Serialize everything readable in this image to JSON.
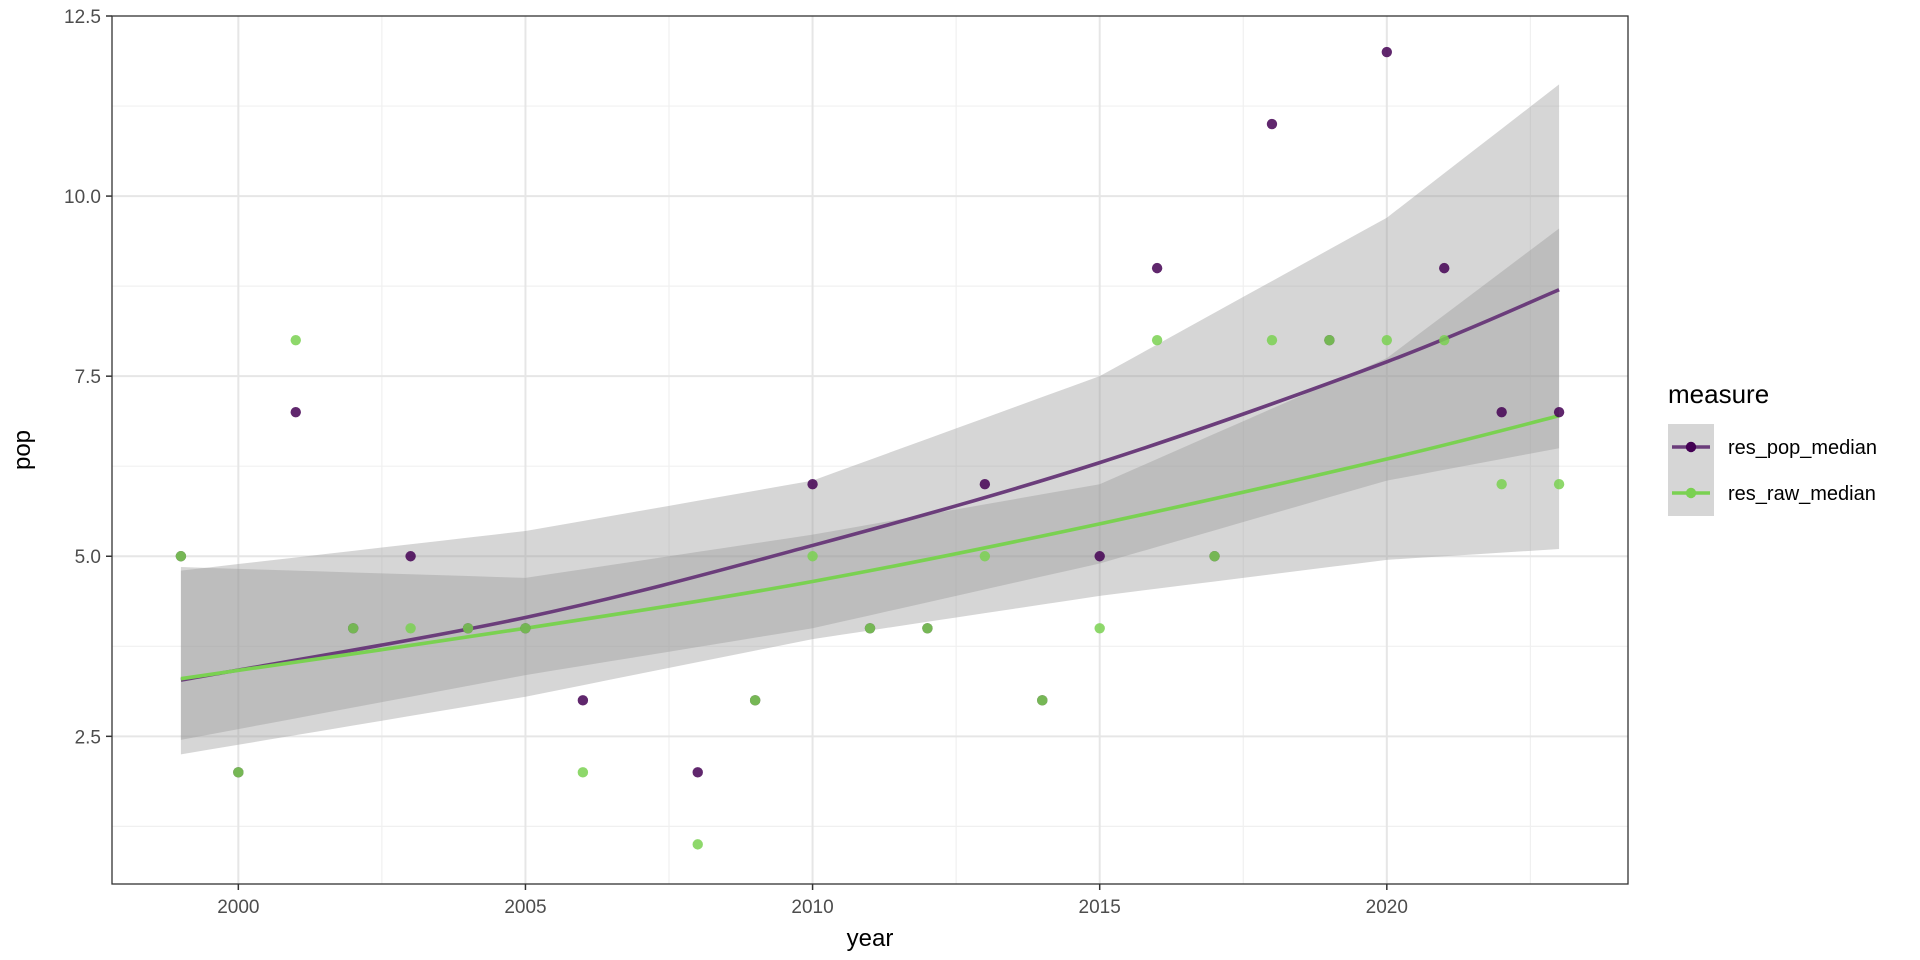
{
  "chart_data": {
    "type": "scatter",
    "xlabel": "year",
    "ylabel": "pop",
    "xlim": [
      1997.8,
      2024.2
    ],
    "ylim": [
      0.45,
      12.5
    ],
    "x_ticks": [
      2000,
      2005,
      2010,
      2015,
      2020
    ],
    "y_ticks": [
      2.5,
      5.0,
      7.5,
      10.0,
      12.5
    ],
    "x_tick_labels": [
      "2000",
      "2005",
      "2010",
      "2015",
      "2020"
    ],
    "y_tick_labels": [
      "2.5",
      "5.0",
      "7.5",
      "10.0",
      "12.5"
    ],
    "grid": true,
    "legend": {
      "title": "measure",
      "position": "right"
    },
    "series": [
      {
        "name": "res_pop_median",
        "color": "#440154",
        "line_color": "#6b3d7b",
        "points": [
          [
            1999,
            5
          ],
          [
            2000,
            2
          ],
          [
            2001,
            7
          ],
          [
            2002,
            4
          ],
          [
            2003,
            5
          ],
          [
            2004,
            4
          ],
          [
            2005,
            4
          ],
          [
            2006,
            3
          ],
          [
            2008,
            2
          ],
          [
            2009,
            3
          ],
          [
            2010,
            6
          ],
          [
            2011,
            4
          ],
          [
            2012,
            4
          ],
          [
            2013,
            6
          ],
          [
            2014,
            3
          ],
          [
            2015,
            5
          ],
          [
            2016,
            9
          ],
          [
            2017,
            5
          ],
          [
            2018,
            11
          ],
          [
            2019,
            8
          ],
          [
            2020,
            12
          ],
          [
            2021,
            9
          ],
          [
            2022,
            7
          ],
          [
            2023,
            7
          ]
        ],
        "fit": [
          [
            1999,
            3.28
          ],
          [
            2005,
            4.15
          ],
          [
            2010,
            5.15
          ],
          [
            2015,
            6.3
          ],
          [
            2020,
            7.7
          ],
          [
            2023,
            8.7
          ]
        ],
        "ci_lower": [
          [
            1999,
            2.25
          ],
          [
            2005,
            3.05
          ],
          [
            2010,
            3.85
          ],
          [
            2015,
            4.45
          ],
          [
            2020,
            4.95
          ],
          [
            2023,
            5.1
          ]
        ],
        "ci_upper": [
          [
            1999,
            4.8
          ],
          [
            2005,
            5.35
          ],
          [
            2010,
            6.05
          ],
          [
            2015,
            7.5
          ],
          [
            2020,
            9.7
          ],
          [
            2023,
            11.55
          ]
        ]
      },
      {
        "name": "res_raw_median",
        "color": "#7ad151",
        "line_color": "#7ad151",
        "points": [
          [
            1999,
            5
          ],
          [
            2000,
            2
          ],
          [
            2001,
            8
          ],
          [
            2002,
            4
          ],
          [
            2003,
            4
          ],
          [
            2004,
            4
          ],
          [
            2005,
            4
          ],
          [
            2006,
            2
          ],
          [
            2008,
            1
          ],
          [
            2009,
            3
          ],
          [
            2010,
            5
          ],
          [
            2011,
            4
          ],
          [
            2012,
            4
          ],
          [
            2013,
            5
          ],
          [
            2014,
            3
          ],
          [
            2015,
            4
          ],
          [
            2016,
            8
          ],
          [
            2017,
            5
          ],
          [
            2018,
            8
          ],
          [
            2019,
            8
          ],
          [
            2020,
            8
          ],
          [
            2021,
            8
          ],
          [
            2022,
            6
          ],
          [
            2023,
            6
          ]
        ],
        "fit": [
          [
            1999,
            3.3
          ],
          [
            2005,
            4.0
          ],
          [
            2010,
            4.65
          ],
          [
            2015,
            5.45
          ],
          [
            2020,
            6.35
          ],
          [
            2023,
            6.95
          ]
        ],
        "ci_lower": [
          [
            1999,
            2.45
          ],
          [
            2005,
            3.35
          ],
          [
            2010,
            4.0
          ],
          [
            2015,
            4.9
          ],
          [
            2020,
            6.05
          ],
          [
            2023,
            6.5
          ]
        ],
        "ci_upper": [
          [
            1999,
            4.85
          ],
          [
            2005,
            4.7
          ],
          [
            2010,
            5.3
          ],
          [
            2015,
            6.0
          ],
          [
            2020,
            7.75
          ],
          [
            2023,
            9.55
          ]
        ]
      }
    ]
  }
}
